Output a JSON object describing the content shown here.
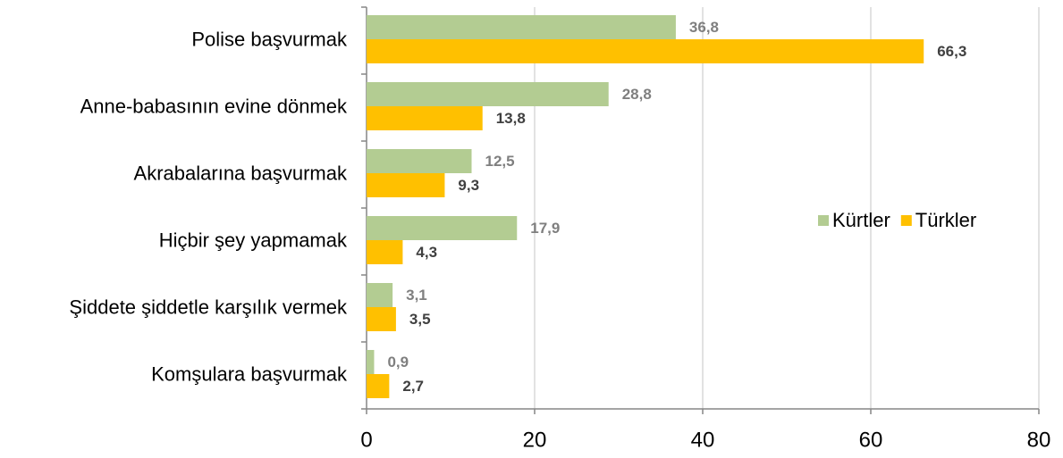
{
  "chart_data": {
    "type": "bar",
    "orientation": "horizontal",
    "categories": [
      "Polise başvurmak",
      "Anne-babasının evine dönmek",
      "Akrabalarına başvurmak",
      "Hiçbir şey yapmamak",
      "Şiddete şiddetle karşılık vermek",
      "Komşulara başvurmak"
    ],
    "series": [
      {
        "name": "Kürtler",
        "color": "#b3cc92",
        "label_color": "#7f7f7f",
        "values": [
          36.8,
          28.8,
          12.5,
          17.9,
          3.1,
          0.9
        ],
        "value_labels": [
          "36,8",
          "28,8",
          "12,5",
          "17,9",
          "3,1",
          "0,9"
        ]
      },
      {
        "name": "Türkler",
        "color": "#ffc000",
        "label_color": "#404040",
        "values": [
          66.3,
          13.8,
          9.3,
          4.3,
          3.5,
          2.7
        ],
        "value_labels": [
          "66,3",
          "13,8",
          "9,3",
          "4,3",
          "3,5",
          "2,7"
        ]
      }
    ],
    "xlim": [
      0,
      80
    ],
    "xticks": [
      0,
      20,
      40,
      60,
      80
    ],
    "grid": true,
    "legend": "right"
  }
}
